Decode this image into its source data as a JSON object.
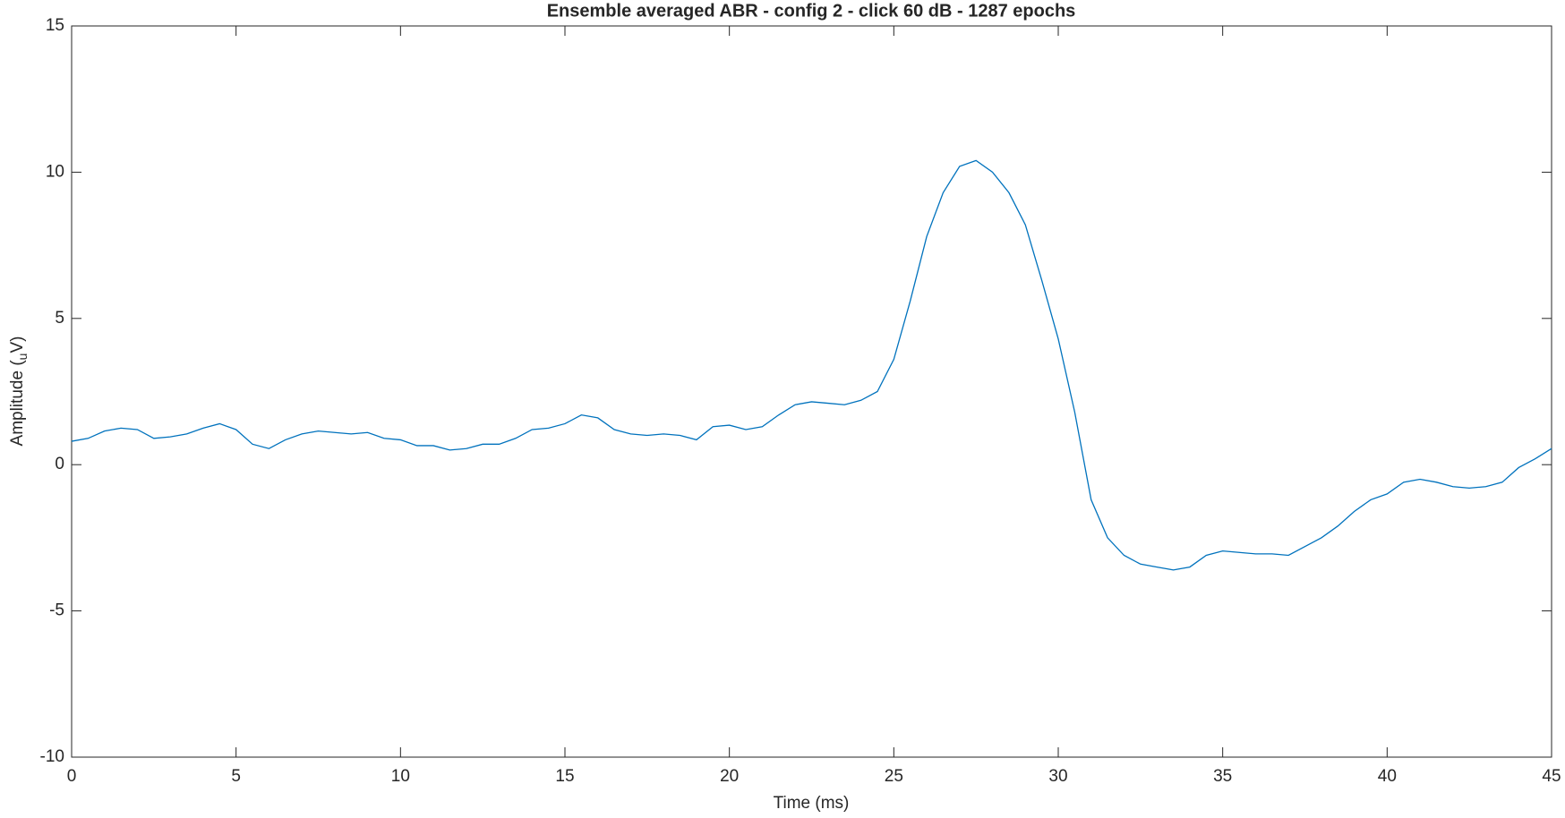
{
  "chart_data": {
    "type": "line",
    "title": "Ensemble averaged ABR - config 2 - click 60 dB - 1287 epochs",
    "xlabel": "Time (ms)",
    "ylabel": [
      "Amplitude (",
      "u",
      "V)"
    ],
    "x": [
      0,
      0.5,
      1,
      1.5,
      2,
      2.5,
      3,
      3.5,
      4,
      4.5,
      5,
      5.5,
      6,
      6.5,
      7,
      7.5,
      8,
      8.5,
      9,
      9.5,
      10,
      10.5,
      11,
      11.5,
      12,
      12.5,
      13,
      13.5,
      14,
      14.5,
      15,
      15.5,
      16,
      16.5,
      17,
      17.5,
      18,
      18.5,
      19,
      19.5,
      20,
      20.5,
      21,
      21.5,
      22,
      22.5,
      23,
      23.5,
      24,
      24.5,
      25,
      25.5,
      26,
      26.5,
      27,
      27.5,
      28,
      28.5,
      29,
      29.5,
      30,
      30.5,
      31,
      31.5,
      32,
      32.5,
      33,
      33.5,
      34,
      34.5,
      35,
      35.5,
      36,
      36.5,
      37,
      37.5,
      38,
      38.5,
      39,
      39.5,
      40,
      40.5,
      41,
      41.5,
      42,
      42.5,
      43,
      43.5,
      44,
      44.5,
      45
    ],
    "series": [
      {
        "color": "#0072bd",
        "values": [
          0.8,
          0.9,
          1.15,
          1.25,
          1.2,
          0.9,
          0.95,
          1.05,
          1.25,
          1.4,
          1.2,
          0.7,
          0.55,
          0.85,
          1.05,
          1.15,
          1.1,
          1.05,
          1.1,
          0.9,
          0.85,
          0.65,
          0.65,
          0.5,
          0.55,
          0.7,
          0.7,
          0.9,
          1.2,
          1.25,
          1.4,
          1.7,
          1.6,
          1.2,
          1.05,
          1.0,
          1.05,
          1.0,
          0.85,
          1.3,
          1.35,
          1.2,
          1.3,
          1.7,
          2.05,
          2.15,
          2.1,
          2.05,
          2.2,
          2.5,
          3.6,
          5.6,
          7.8,
          9.3,
          10.2,
          10.4,
          10.0,
          9.3,
          8.2,
          6.3,
          4.3,
          1.8,
          -1.2,
          -2.5,
          -3.1,
          -3.4,
          -3.5,
          -3.6,
          -3.5,
          -3.1,
          -2.95,
          -3.0,
          -3.05,
          -3.05,
          -3.1,
          -2.8,
          -2.5,
          -2.1,
          -1.6,
          -1.2,
          -1.0,
          -0.6,
          -0.5,
          -0.6,
          -0.75,
          -0.8,
          -0.75,
          -0.6,
          -0.1,
          0.2,
          0.55
        ]
      }
    ],
    "xlim": [
      0,
      45
    ],
    "xticks": [
      0,
      5,
      10,
      15,
      20,
      25,
      30,
      35,
      40,
      45
    ],
    "ylim": [
      -10,
      15
    ],
    "yticks": [
      -10,
      -5,
      0,
      5,
      10,
      15
    ]
  }
}
